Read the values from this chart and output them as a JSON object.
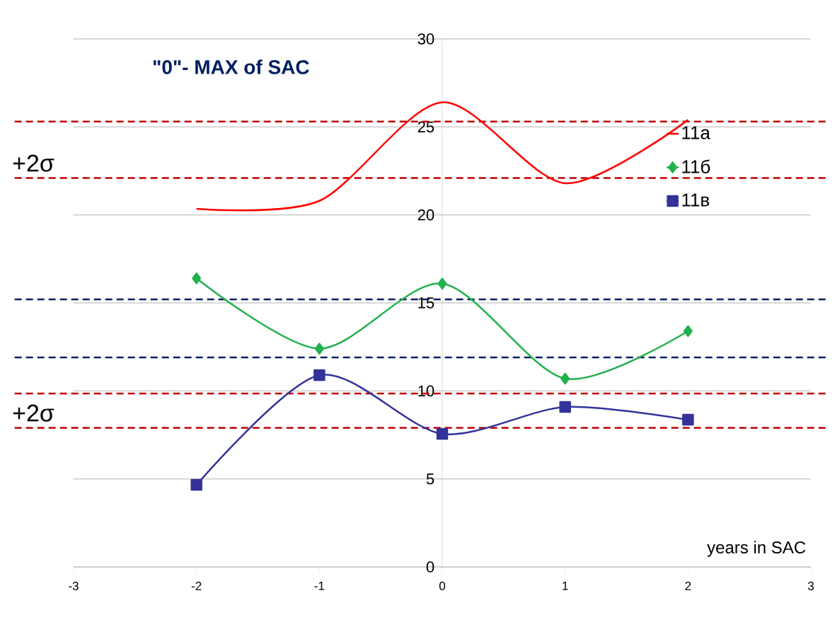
{
  "chart_data": {
    "type": "line",
    "title": "\"0\"- MAX of SAC",
    "xlabel": "years in  SAC",
    "x": [
      -2,
      -1,
      0,
      1,
      2
    ],
    "series": [
      {
        "name": "11а",
        "color": "#ff0000",
        "marker": "none",
        "values": [
          20.35,
          20.8,
          26.4,
          21.8,
          25.4
        ]
      },
      {
        "name": "11б",
        "color": "#22b14c",
        "marker": "diamond",
        "values": [
          16.4,
          12.4,
          16.1,
          10.7,
          13.4
        ]
      },
      {
        "name": "11в",
        "color": "#333399",
        "marker": "square",
        "values": [
          4.66,
          10.9,
          7.56,
          9.09,
          8.36
        ]
      }
    ],
    "xlim": [
      -3,
      3
    ],
    "xticks": [
      -3,
      -2,
      -1,
      0,
      1,
      2,
      3
    ],
    "ylim": [
      0,
      30
    ],
    "yticks": [
      0,
      5,
      10,
      15,
      20,
      25,
      30
    ],
    "grid": "y",
    "legend": "right",
    "ref_lines": [
      {
        "axis": "y",
        "value": 25.3,
        "color": "#c00000",
        "line_style": "dashed"
      },
      {
        "axis": "y",
        "value": 22.1,
        "label": "+2σ",
        "color": "#c00000",
        "line_style": "dashed"
      },
      {
        "axis": "y",
        "value": 15.2,
        "color": "#002060",
        "line_style": "dashed"
      },
      {
        "axis": "y",
        "value": 11.9,
        "color": "#002060",
        "line_style": "dashed"
      },
      {
        "axis": "y",
        "value": 9.85,
        "color": "#c00000",
        "line_style": "dashed"
      },
      {
        "axis": "y",
        "value": 7.9,
        "label": "+2σ",
        "color": "#c00000",
        "line_style": "dashed"
      }
    ]
  }
}
